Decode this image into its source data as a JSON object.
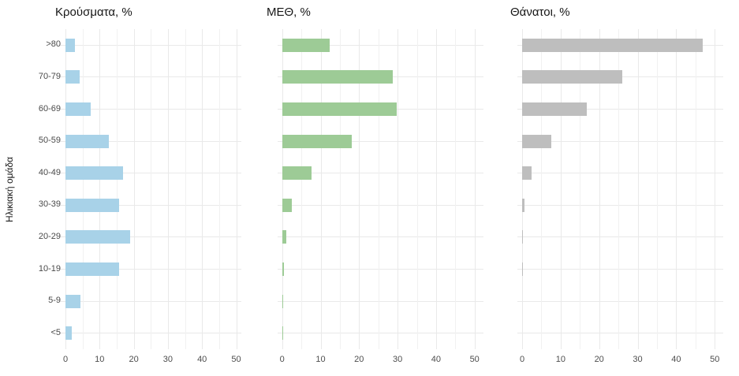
{
  "figure": {
    "background": "#ffffff",
    "y_axis_title": "Ηλικιακή ομάδα"
  },
  "chart_data": [
    {
      "type": "bar",
      "orientation": "horizontal",
      "title": "Κρούσματα, %",
      "ylabel": "Ηλικιακή ομάδα",
      "xlabel": "",
      "categories": [
        ">80",
        "70-79",
        "60-69",
        "50-59",
        "40-49",
        "30-39",
        "20-29",
        "10-19",
        "5-9",
        "<5"
      ],
      "values": [
        2.8,
        4.2,
        7.5,
        12.8,
        16.9,
        15.7,
        19,
        15.7,
        4.4,
        1.9
      ],
      "xlim": [
        0,
        50
      ],
      "x_ticks": [
        0,
        10,
        20,
        30,
        40,
        50
      ],
      "minor_grid_step": 5,
      "grid": true,
      "legend": "none",
      "bar_color": "#a8d2e8"
    },
    {
      "type": "bar",
      "orientation": "horizontal",
      "title": "ΜΕΘ, %",
      "ylabel": "",
      "xlabel": "",
      "categories": [
        ">80",
        "70-79",
        "60-69",
        "50-59",
        "40-49",
        "30-39",
        "20-29",
        "10-19",
        "5-9",
        "<5"
      ],
      "values": [
        12.4,
        28.7,
        29.7,
        18,
        7.7,
        2.5,
        1,
        0.5,
        0.15,
        0.15
      ],
      "xlim": [
        0,
        50
      ],
      "x_ticks": [
        0,
        10,
        20,
        30,
        40,
        50
      ],
      "minor_grid_step": 5,
      "grid": true,
      "legend": "none",
      "bar_color": "#9dcb96"
    },
    {
      "type": "bar",
      "orientation": "horizontal",
      "title": "Θάνατοι, %",
      "ylabel": "",
      "xlabel": "",
      "categories": [
        ">80",
        "70-79",
        "60-69",
        "50-59",
        "40-49",
        "30-39",
        "20-29",
        "10-19",
        "5-9",
        "<5"
      ],
      "values": [
        46.8,
        26.1,
        16.7,
        7.6,
        2.5,
        0.6,
        0.15,
        0.15,
        0,
        0
      ],
      "xlim": [
        0,
        50
      ],
      "x_ticks": [
        0,
        10,
        20,
        30,
        40,
        50
      ],
      "minor_grid_step": 5,
      "grid": true,
      "legend": "none",
      "bar_color": "#bebebe"
    }
  ],
  "colors": {
    "cases_bar": "#a8d2e8",
    "icu_bar": "#9dcb96",
    "deaths_bar": "#bebebe",
    "gridline": "#e9e9e9",
    "tick_text": "#4d4d4d",
    "title_text": "#161616"
  }
}
